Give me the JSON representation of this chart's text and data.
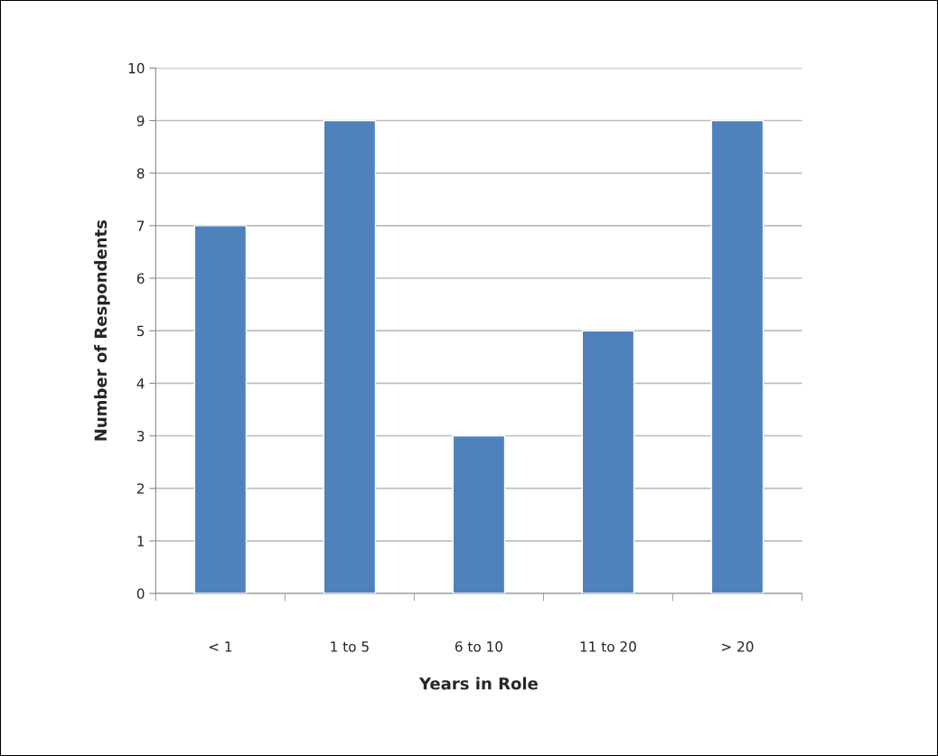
{
  "chart_data": {
    "type": "bar",
    "xlabel": "Years in Role",
    "ylabel": "Number of Respondents",
    "categories": [
      "< 1",
      "1 to 5",
      "6 to 10",
      "11 to 20",
      "> 20"
    ],
    "values": [
      7,
      9,
      3,
      5,
      9
    ],
    "color": "#4f81bd",
    "ylim": [
      0,
      10
    ],
    "yticks": [
      0,
      1,
      2,
      3,
      4,
      5,
      6,
      7,
      8,
      9,
      10
    ],
    "grid": "y",
    "legend": false
  }
}
